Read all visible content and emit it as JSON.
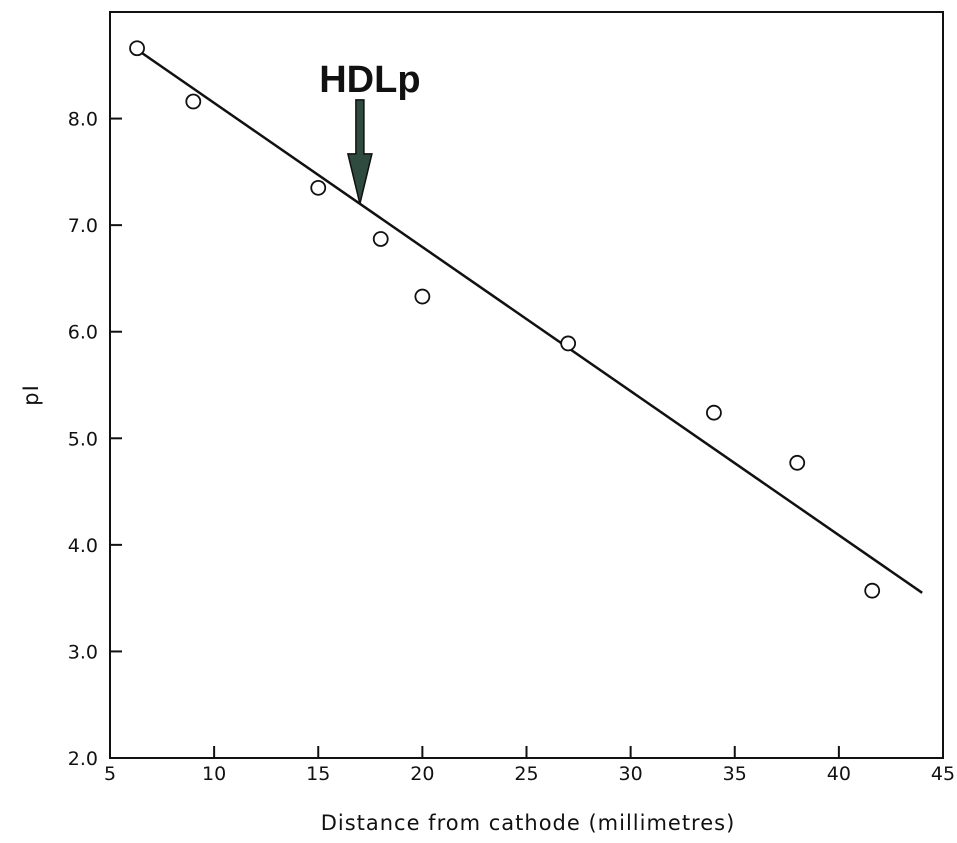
{
  "chart_data": {
    "type": "scatter",
    "title": "",
    "xlabel": "Distance from cathode (millimetres)",
    "ylabel": "pI",
    "xlim": [
      5,
      45
    ],
    "ylim": [
      2.0,
      9.0
    ],
    "xticks": [
      5,
      10,
      15,
      20,
      25,
      30,
      35,
      40,
      45
    ],
    "xtick_labels": [
      "5",
      "10",
      "15",
      "20",
      "25",
      "30",
      "35",
      "40",
      "45"
    ],
    "yticks": [
      2.0,
      3.0,
      4.0,
      5.0,
      6.0,
      7.0,
      8.0
    ],
    "ytick_labels": [
      "2.0",
      "3.0",
      "4.0",
      "5.0",
      "6.0",
      "7.0",
      "8.0"
    ],
    "grid": false,
    "marker": "open-circle",
    "points": [
      {
        "x": 6.3,
        "y": 8.66
      },
      {
        "x": 9.0,
        "y": 8.16
      },
      {
        "x": 15.0,
        "y": 7.35
      },
      {
        "x": 18.0,
        "y": 6.87
      },
      {
        "x": 20.0,
        "y": 6.33
      },
      {
        "x": 27.0,
        "y": 5.89
      },
      {
        "x": 34.0,
        "y": 5.24
      },
      {
        "x": 38.0,
        "y": 4.77
      },
      {
        "x": 41.6,
        "y": 3.57
      }
    ],
    "fit_line": {
      "x": [
        6.5,
        44.0
      ],
      "y": [
        8.62,
        3.55
      ]
    },
    "annotation": {
      "text": "HDLp",
      "x": 17.0,
      "y": 7.2,
      "type": "downward-arrow"
    },
    "colors": {
      "marker_stroke": "#111111",
      "line": "#111111",
      "arrow": "#2f4a3e"
    }
  }
}
